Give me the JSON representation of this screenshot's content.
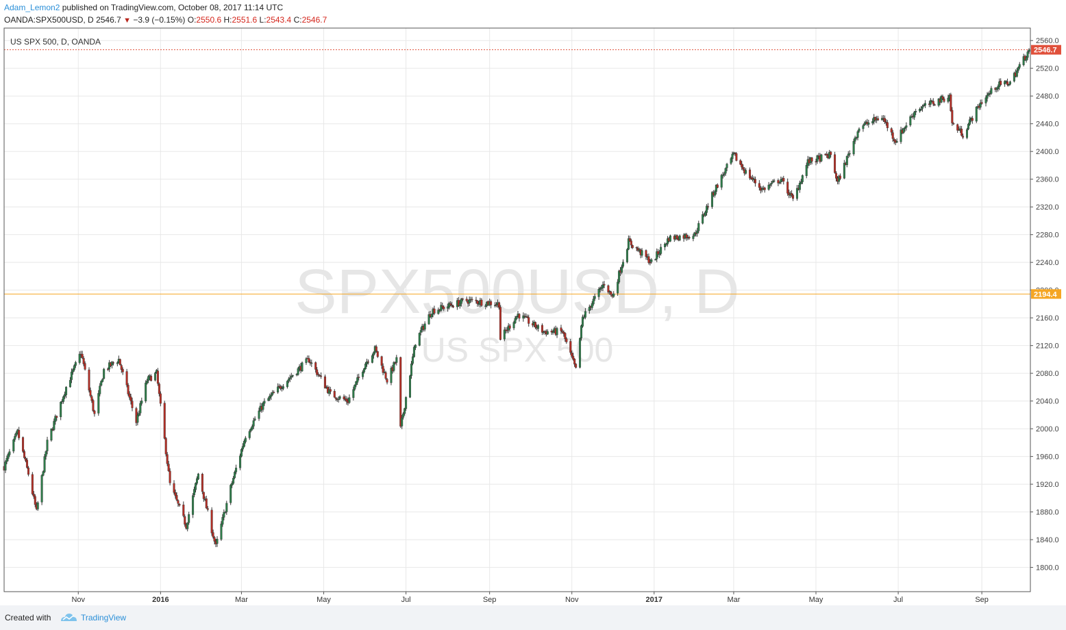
{
  "header": {
    "author": "Adam_Lemon2",
    "published": "published on TradingView.com, October 08, 2017 11:14 UTC",
    "symbol": "OANDA:SPX500USD, D",
    "last": "2546.7",
    "change": "−3.9 (−0.15%)",
    "o_label": "O:",
    "o_value": "2550.6",
    "h_label": "H:",
    "h_value": "2551.6",
    "l_label": "L:",
    "l_value": "2543.4",
    "c_label": "C:",
    "c_value": "2546.7"
  },
  "footer": {
    "created_with": "Created with",
    "brand": "TradingView"
  },
  "colors": {
    "up": "#2e7d4a",
    "down": "#b52e25",
    "last_price": "#e0503b",
    "hline": "#f5a623",
    "grid": "#e8e8e8",
    "watermark": "#e6e6e6"
  },
  "chart_data": {
    "type": "candlestick",
    "title": "US SPX 500, D, OANDA",
    "watermark": "SPX500USD, D",
    "watermark_sub": "US SPX 500",
    "ylim": [
      1765,
      2578
    ],
    "y_ticks": [
      "1800.0",
      "1840.0",
      "1880.0",
      "1920.0",
      "1960.0",
      "2000.0",
      "2040.0",
      "2080.0",
      "2120.0",
      "2160.0",
      "2200.0",
      "2240.0",
      "2280.0",
      "2320.0",
      "2360.0",
      "2400.0",
      "2440.0",
      "2480.0",
      "2520.0",
      "2560.0"
    ],
    "x_start": "2015-09-07",
    "x_end": "2017-10-07",
    "x_ticks": [
      {
        "date": "2015-11-01",
        "label": "Nov",
        "bold": false
      },
      {
        "date": "2016-01-01",
        "label": "2016",
        "bold": true
      },
      {
        "date": "2016-03-01",
        "label": "Mar",
        "bold": false
      },
      {
        "date": "2016-05-01",
        "label": "May",
        "bold": false
      },
      {
        "date": "2016-07-01",
        "label": "Jul",
        "bold": false
      },
      {
        "date": "2016-09-01",
        "label": "Sep",
        "bold": false
      },
      {
        "date": "2016-11-01",
        "label": "Nov",
        "bold": false
      },
      {
        "date": "2017-01-01",
        "label": "2017",
        "bold": true
      },
      {
        "date": "2017-03-01",
        "label": "Mar",
        "bold": false
      },
      {
        "date": "2017-05-01",
        "label": "May",
        "bold": false
      },
      {
        "date": "2017-07-01",
        "label": "Jul",
        "bold": false
      },
      {
        "date": "2017-09-01",
        "label": "Sep",
        "bold": false
      }
    ],
    "last_price": {
      "value": 2546.7,
      "label": "2546.7"
    },
    "horizontal_line": {
      "value": 2194.4,
      "label": "2194.4"
    },
    "closes": [
      {
        "date": "2015-09-07",
        "close": 1945
      },
      {
        "date": "2015-09-17",
        "close": 1995
      },
      {
        "date": "2015-09-25",
        "close": 1935
      },
      {
        "date": "2015-10-01",
        "close": 1880
      },
      {
        "date": "2015-10-09",
        "close": 1980
      },
      {
        "date": "2015-10-16",
        "close": 2020
      },
      {
        "date": "2015-10-23",
        "close": 2060
      },
      {
        "date": "2015-11-03",
        "close": 2110
      },
      {
        "date": "2015-11-13",
        "close": 2020
      },
      {
        "date": "2015-11-20",
        "close": 2085
      },
      {
        "date": "2015-12-01",
        "close": 2100
      },
      {
        "date": "2015-12-14",
        "close": 2010
      },
      {
        "date": "2015-12-22",
        "close": 2070
      },
      {
        "date": "2015-12-29",
        "close": 2080
      },
      {
        "date": "2016-01-08",
        "close": 1920
      },
      {
        "date": "2016-01-20",
        "close": 1860
      },
      {
        "date": "2016-01-29",
        "close": 1935
      },
      {
        "date": "2016-02-11",
        "close": 1830
      },
      {
        "date": "2016-02-22",
        "close": 1915
      },
      {
        "date": "2016-03-04",
        "close": 1990
      },
      {
        "date": "2016-03-17",
        "close": 2035
      },
      {
        "date": "2016-04-01",
        "close": 2065
      },
      {
        "date": "2016-04-20",
        "close": 2100
      },
      {
        "date": "2016-05-06",
        "close": 2050
      },
      {
        "date": "2016-05-19",
        "close": 2040
      },
      {
        "date": "2016-06-01",
        "close": 2095
      },
      {
        "date": "2016-06-08",
        "close": 2115
      },
      {
        "date": "2016-06-17",
        "close": 2070
      },
      {
        "date": "2016-06-24",
        "close": 2100
      },
      {
        "date": "2016-06-27",
        "close": 2000
      },
      {
        "date": "2016-07-08",
        "close": 2125
      },
      {
        "date": "2016-07-20",
        "close": 2170
      },
      {
        "date": "2016-08-15",
        "close": 2185
      },
      {
        "date": "2016-09-08",
        "close": 2180
      },
      {
        "date": "2016-09-09",
        "close": 2130
      },
      {
        "date": "2016-09-22",
        "close": 2165
      },
      {
        "date": "2016-10-11",
        "close": 2140
      },
      {
        "date": "2016-10-25",
        "close": 2140
      },
      {
        "date": "2016-11-04",
        "close": 2085
      },
      {
        "date": "2016-11-09",
        "close": 2160
      },
      {
        "date": "2016-11-25",
        "close": 2210
      },
      {
        "date": "2016-12-01",
        "close": 2190
      },
      {
        "date": "2016-12-13",
        "close": 2270
      },
      {
        "date": "2016-12-30",
        "close": 2240
      },
      {
        "date": "2017-01-12",
        "close": 2275
      },
      {
        "date": "2017-01-31",
        "close": 2280
      },
      {
        "date": "2017-02-15",
        "close": 2345
      },
      {
        "date": "2017-03-01",
        "close": 2395
      },
      {
        "date": "2017-03-10",
        "close": 2370
      },
      {
        "date": "2017-03-22",
        "close": 2345
      },
      {
        "date": "2017-04-05",
        "close": 2360
      },
      {
        "date": "2017-04-14",
        "close": 2330
      },
      {
        "date": "2017-04-25",
        "close": 2385
      },
      {
        "date": "2017-05-12",
        "close": 2395
      },
      {
        "date": "2017-05-17",
        "close": 2355
      },
      {
        "date": "2017-06-02",
        "close": 2435
      },
      {
        "date": "2017-06-19",
        "close": 2450
      },
      {
        "date": "2017-06-29",
        "close": 2415
      },
      {
        "date": "2017-07-14",
        "close": 2460
      },
      {
        "date": "2017-08-08",
        "close": 2480
      },
      {
        "date": "2017-08-10",
        "close": 2440
      },
      {
        "date": "2017-08-18",
        "close": 2425
      },
      {
        "date": "2017-08-31",
        "close": 2470
      },
      {
        "date": "2017-09-12",
        "close": 2495
      },
      {
        "date": "2017-09-22",
        "close": 2500
      },
      {
        "date": "2017-10-06",
        "close": 2546.7
      }
    ]
  }
}
